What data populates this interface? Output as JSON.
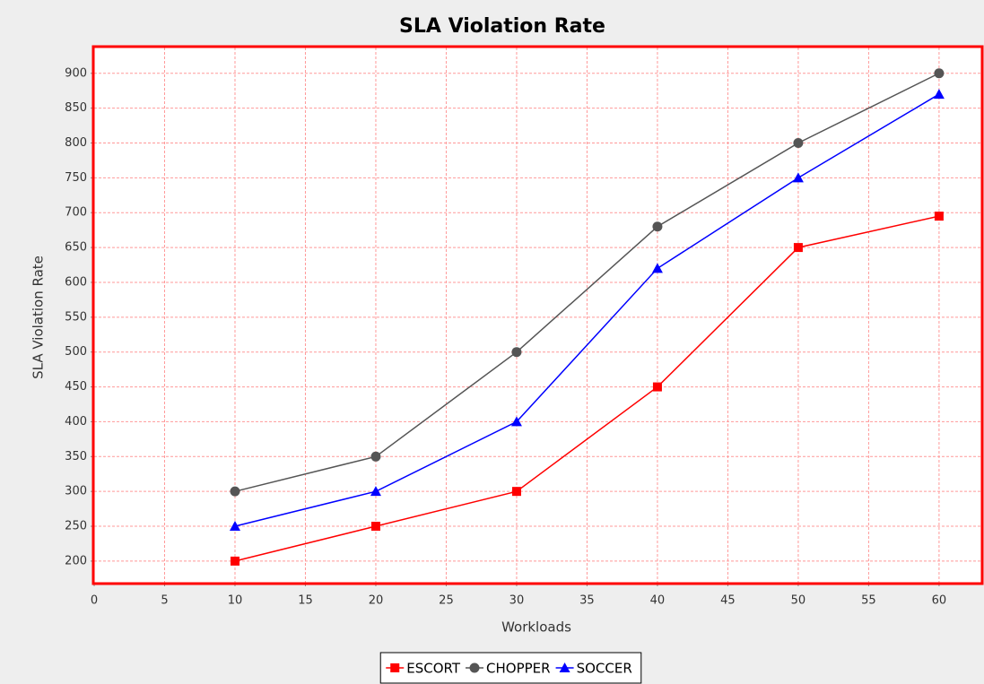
{
  "chart_data": {
    "type": "line",
    "title": "SLA Violation Rate",
    "xlabel": "Workloads",
    "ylabel": "SLA Violation Rate",
    "x": [
      10,
      20,
      30,
      40,
      50,
      60
    ],
    "series": [
      {
        "name": "ESCORT",
        "color": "#ff0000",
        "marker": "square",
        "values": [
          200,
          250,
          300,
          450,
          650,
          695
        ]
      },
      {
        "name": "CHOPPER",
        "color": "#555555",
        "marker": "circle",
        "values": [
          300,
          350,
          500,
          680,
          800,
          900
        ]
      },
      {
        "name": "SOCCER",
        "color": "#0000ff",
        "marker": "triangle",
        "values": [
          250,
          300,
          400,
          620,
          750,
          870
        ]
      }
    ],
    "xlim": [
      0,
      63
    ],
    "xticks": [
      0,
      5,
      10,
      15,
      20,
      25,
      30,
      35,
      40,
      45,
      50,
      55,
      60
    ],
    "ylim": [
      169,
      937
    ],
    "yticks": [
      200,
      250,
      300,
      350,
      400,
      450,
      500,
      550,
      600,
      650,
      700,
      750,
      800,
      850,
      900
    ],
    "grid": true,
    "legend": "bottom"
  }
}
